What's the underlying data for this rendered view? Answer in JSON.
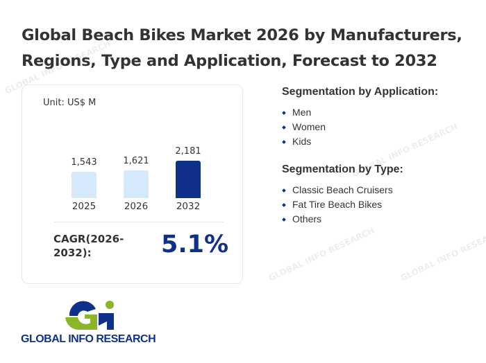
{
  "title": "Global Beach Bikes Market 2026 by Manufacturers, Regions, Type and Application, Forecast to 2032",
  "card": {
    "unit": "Unit: US$ M",
    "cagr_label": "CAGR(2026-2032):",
    "cagr_value": "5.1%"
  },
  "chart_data": {
    "type": "bar",
    "categories": [
      "2025",
      "2026",
      "2032"
    ],
    "values": [
      1543,
      1621,
      2181
    ],
    "value_labels": [
      "1,543",
      "1,621",
      "2,181"
    ],
    "colors": [
      "#d6e9fb",
      "#d6e9fb",
      "#10318a"
    ],
    "ylabel": "Unit: US$ M"
  },
  "segmentation_application": {
    "heading": "Segmentation by Application:",
    "items": [
      "Men",
      "Women",
      "Kids"
    ]
  },
  "segmentation_type": {
    "heading": "Segmentation by Type:",
    "items": [
      "Classic Beach Cruisers",
      "Fat Tire Beach Bikes",
      "Others"
    ]
  },
  "logo": {
    "text": "GLOBAL INFO RESEARCH"
  }
}
